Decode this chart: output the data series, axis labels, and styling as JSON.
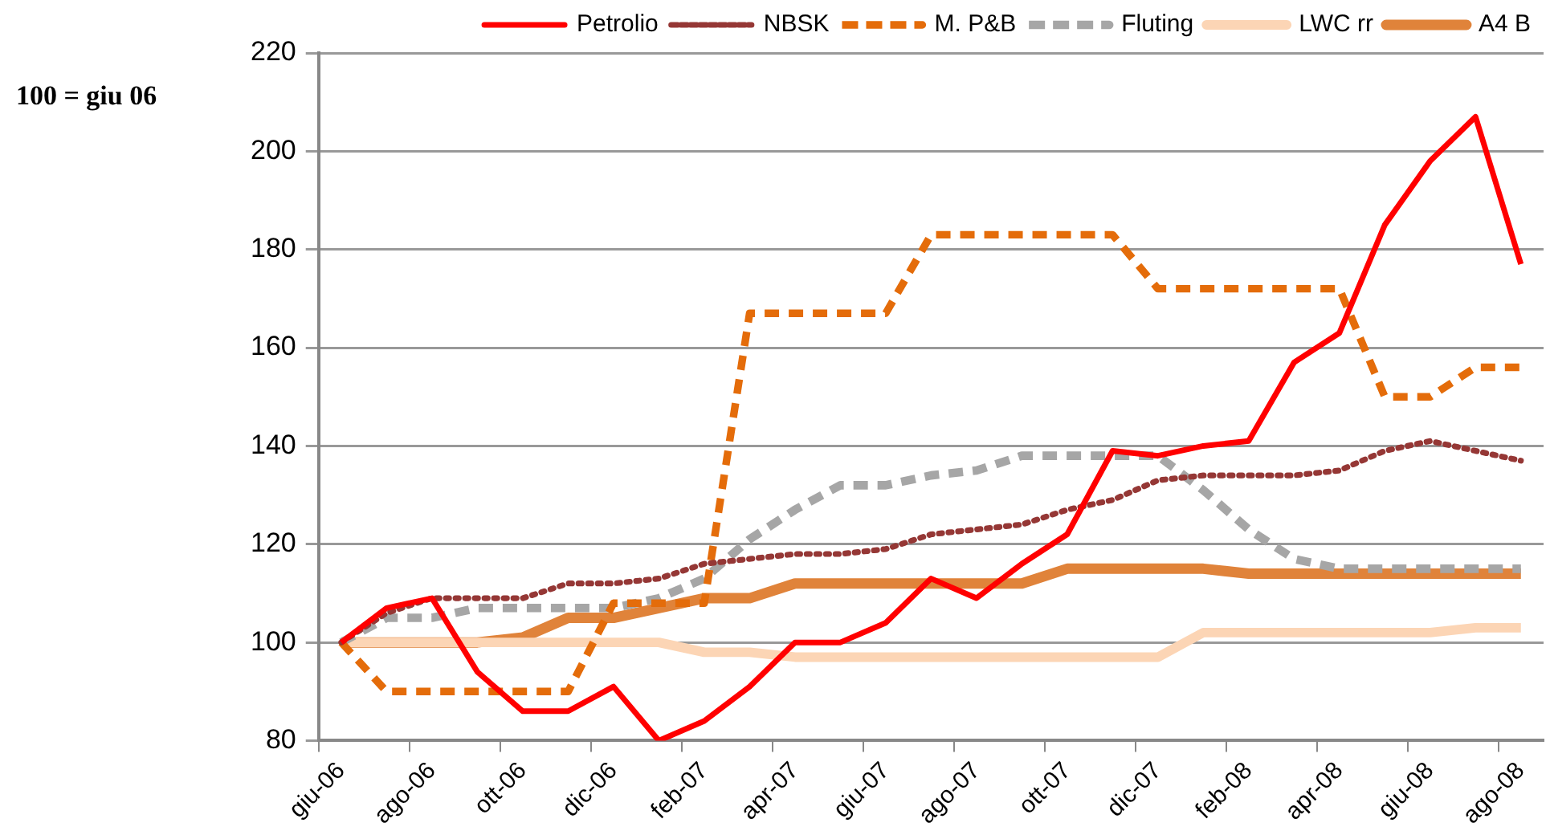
{
  "chart_data": {
    "type": "line",
    "annotations": [
      "100 = giu 06"
    ],
    "categories": [
      "giu-06",
      null,
      "ago-06",
      null,
      "ott-06",
      null,
      "dic-06",
      null,
      "feb-07",
      null,
      "apr-07",
      null,
      "giu-07",
      null,
      "ago-07",
      null,
      "ott-07",
      null,
      "dic-07",
      null,
      "feb-08",
      null,
      "apr-08",
      null,
      "giu-08",
      null,
      "ago-08"
    ],
    "ylim": [
      80,
      220
    ],
    "yticks": [
      80,
      100,
      120,
      140,
      160,
      180,
      200,
      220
    ],
    "grid": "y",
    "legend": "top right",
    "marker": "none",
    "series": [
      {
        "name": "Petrolio",
        "color": "#ff0000",
        "line_style": "solid",
        "values": [
          100,
          107,
          109,
          94,
          86,
          86,
          91,
          80,
          84,
          91,
          100,
          100,
          104,
          113,
          109,
          116,
          122,
          139,
          138,
          140,
          141,
          157,
          163,
          185,
          198,
          207,
          177
        ]
      },
      {
        "name": "NBSK",
        "color": "#953735",
        "line_style": "dotted",
        "values": [
          100,
          106,
          109,
          109,
          109,
          112,
          112,
          113,
          116,
          117,
          118,
          118,
          119,
          122,
          123,
          124,
          127,
          129,
          133,
          134,
          134,
          134,
          135,
          139,
          141,
          139,
          137
        ]
      },
      {
        "name": "M. P&B",
        "color": "#e46c0a",
        "line_style": "dashed",
        "values": [
          100,
          90,
          90,
          90,
          90,
          90,
          108,
          108,
          108,
          167,
          167,
          167,
          167,
          183,
          183,
          183,
          183,
          183,
          172,
          172,
          172,
          172,
          172,
          150,
          150,
          156,
          156
        ]
      },
      {
        "name": "Fluting",
        "color": "#a6a6a6",
        "line_style": "dashed",
        "values": [
          100,
          105,
          105,
          107,
          107,
          107,
          107,
          109,
          113,
          121,
          127,
          132,
          132,
          134,
          135,
          138,
          138,
          138,
          138,
          131,
          123,
          117,
          115,
          115,
          115,
          115,
          115
        ]
      },
      {
        "name": "LWC rr",
        "color": "#fcd5b5",
        "line_style": "solid",
        "values": [
          100,
          100,
          100,
          100,
          100,
          100,
          100,
          100,
          98,
          98,
          97,
          97,
          97,
          97,
          97,
          97,
          97,
          97,
          97,
          102,
          102,
          102,
          102,
          102,
          102,
          103,
          103
        ]
      },
      {
        "name": "A4 B",
        "color": "#e0833a",
        "line_style": "solid",
        "values": [
          100,
          100,
          100,
          100,
          101,
          105,
          105,
          107,
          109,
          109,
          112,
          112,
          112,
          112,
          112,
          112,
          115,
          115,
          115,
          115,
          114,
          114,
          114,
          114,
          114,
          114,
          114
        ]
      }
    ]
  }
}
